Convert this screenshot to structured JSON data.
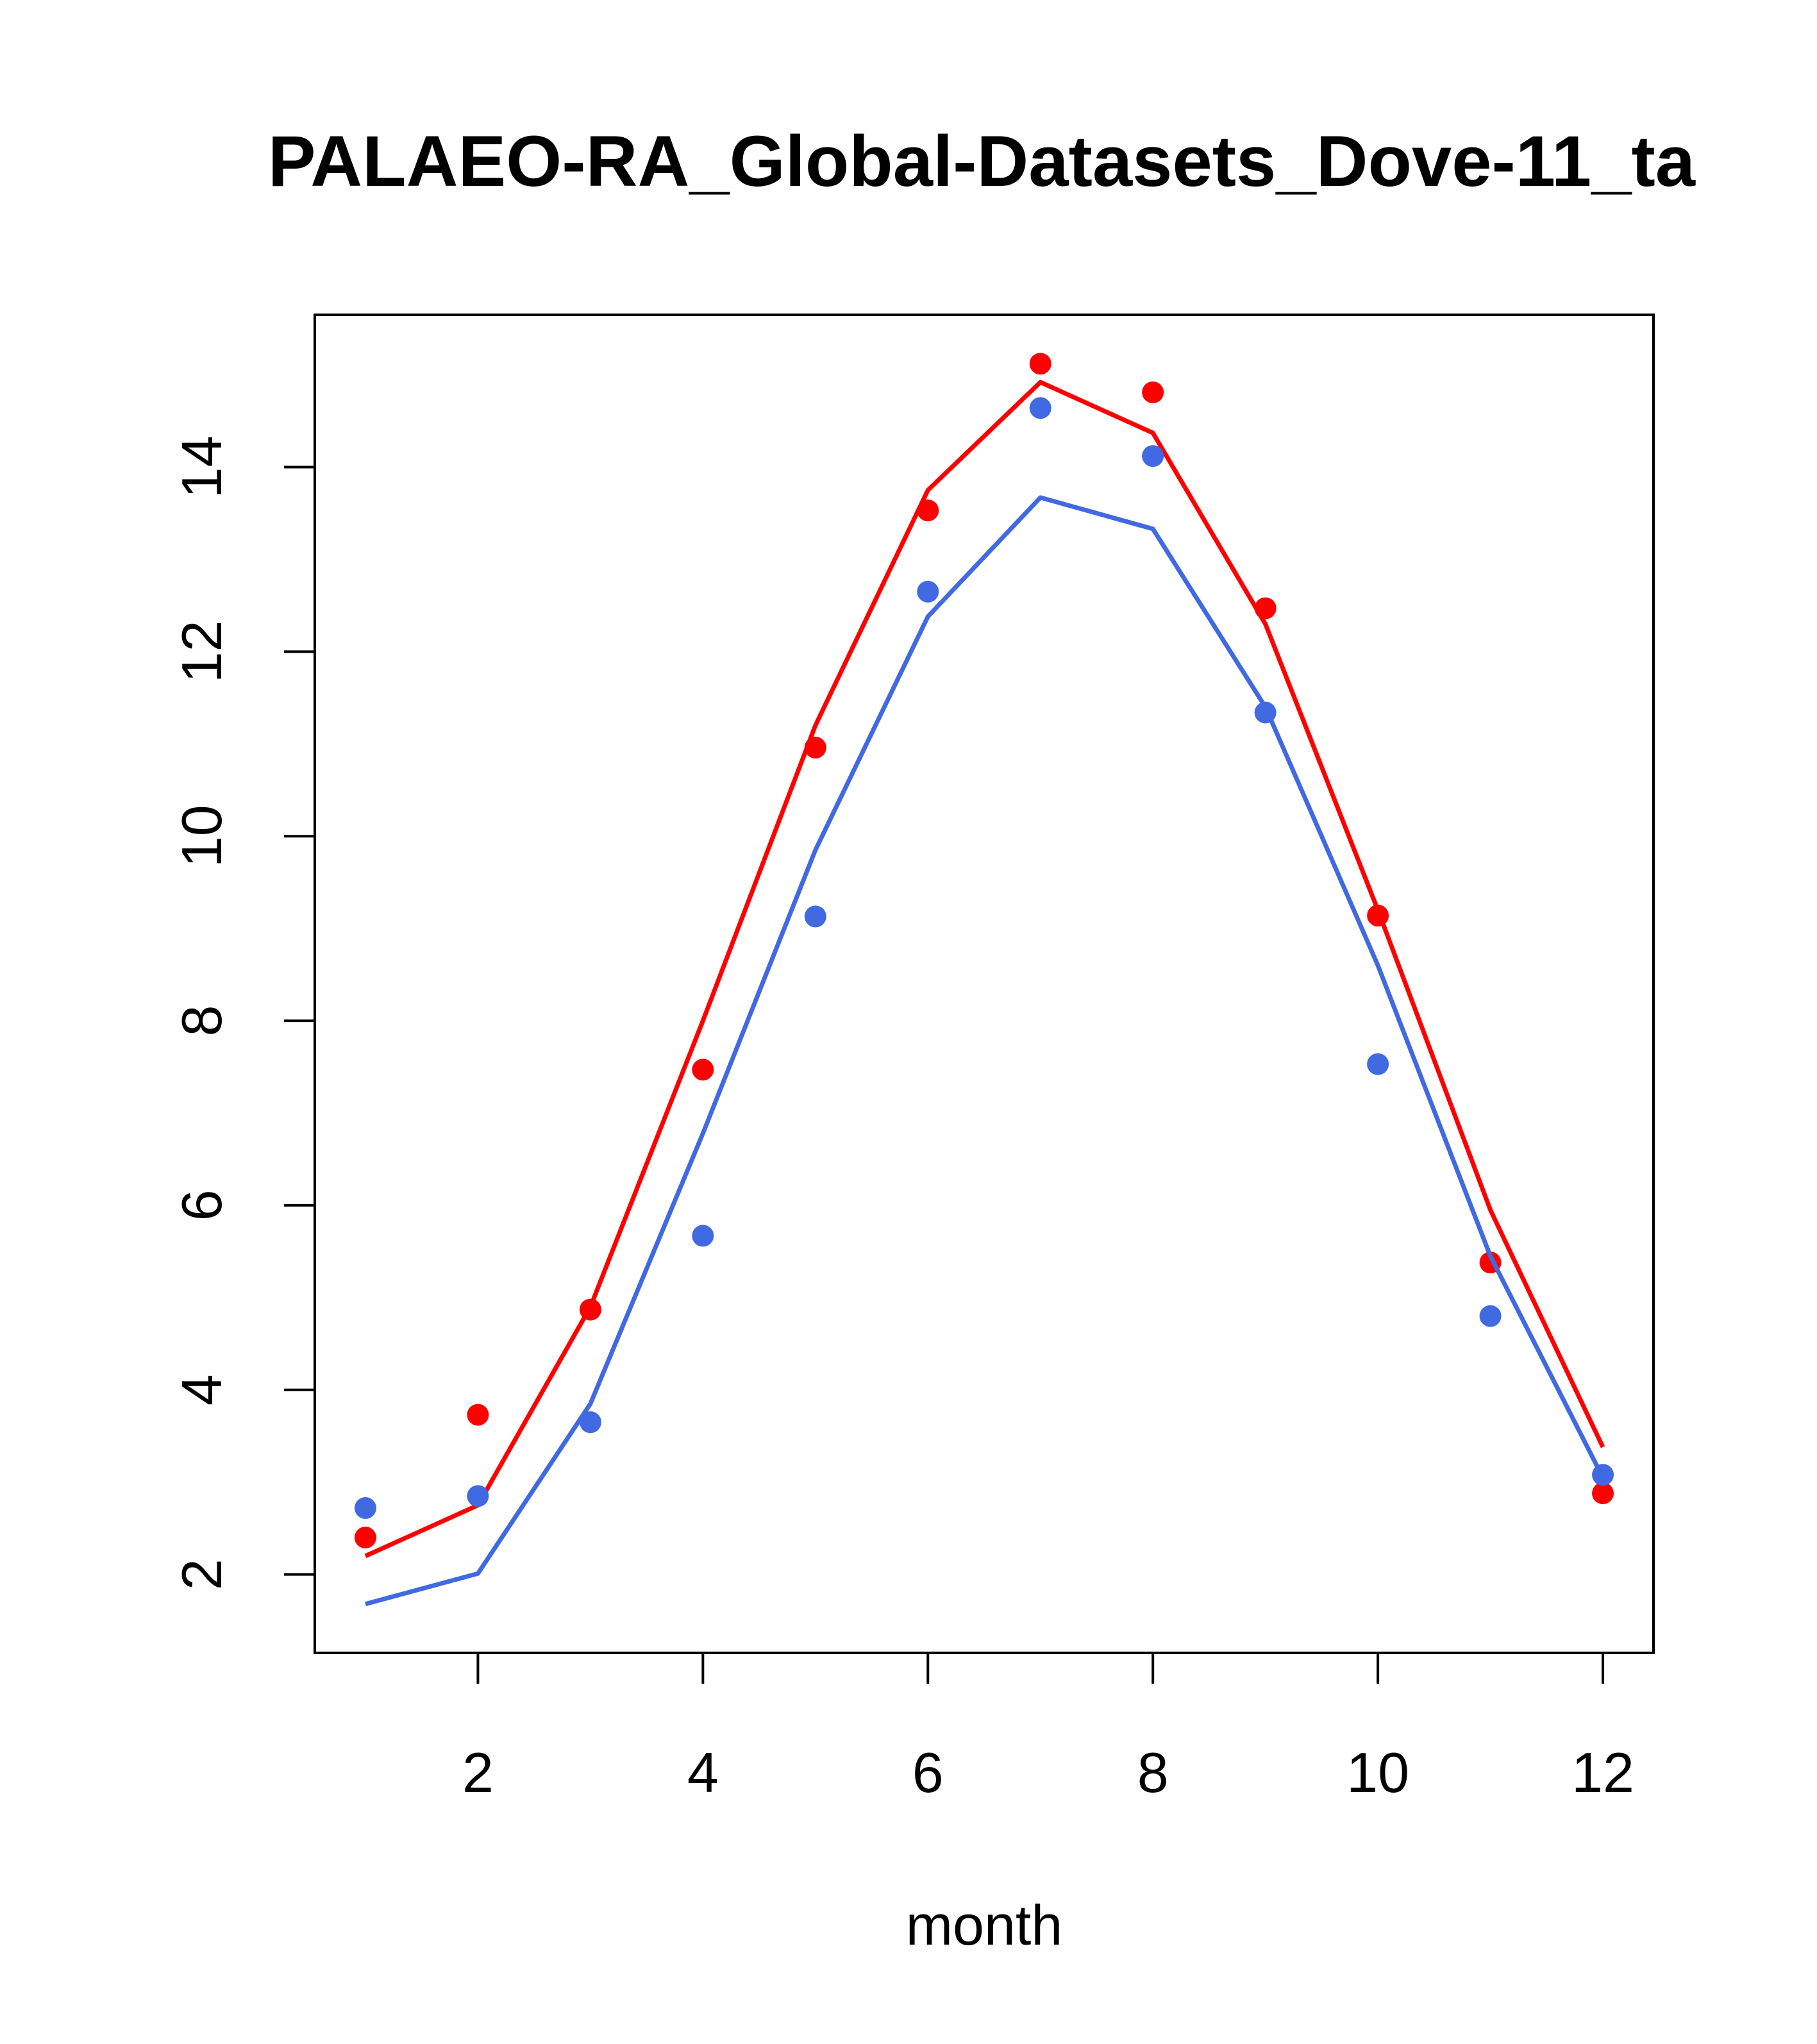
{
  "chart_data": {
    "type": "line",
    "title": "PALAEO-RA_Global-Datasets_Dove-11_ta",
    "xlabel": "month",
    "ylabel": "",
    "x": [
      1,
      2,
      3,
      4,
      5,
      6,
      7,
      8,
      9,
      10,
      11,
      12
    ],
    "xlim": [
      0.55,
      12.45
    ],
    "ylim": [
      1.15,
      15.65
    ],
    "xticks": [
      2,
      4,
      6,
      8,
      10,
      12
    ],
    "yticks": [
      2,
      4,
      6,
      8,
      10,
      12,
      14
    ],
    "grid": false,
    "series": [
      {
        "color": "#ff0000",
        "line": [
          2.2,
          2.75,
          4.9,
          8.0,
          11.2,
          13.75,
          14.92,
          14.37,
          12.3,
          9.2,
          5.95,
          3.38
        ],
        "points": [
          2.4,
          3.73,
          4.87,
          7.47,
          10.96,
          13.53,
          15.12,
          14.81,
          12.47,
          9.14,
          5.38,
          2.88
        ]
      },
      {
        "color": "#4169e1",
        "line": [
          1.68,
          2.01,
          3.85,
          6.78,
          9.85,
          12.38,
          13.67,
          13.33,
          11.4,
          8.6,
          5.45,
          3.05
        ],
        "points": [
          2.72,
          2.85,
          3.65,
          5.67,
          9.13,
          12.65,
          14.64,
          14.12,
          11.34,
          7.53,
          4.8,
          3.08
        ]
      }
    ]
  }
}
